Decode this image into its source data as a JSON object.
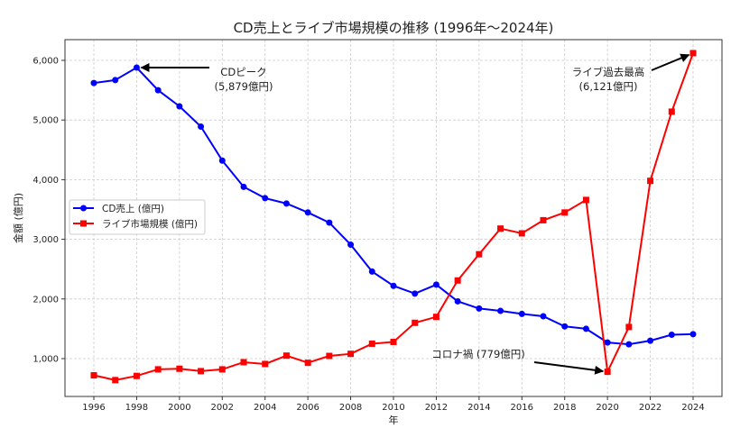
{
  "chart_data": {
    "type": "line",
    "title": "CD売上とライブ市場規模の推移 (1996年〜2024年)",
    "xlabel": "年",
    "ylabel": "金額 (億円)",
    "x": [
      1996,
      1997,
      1998,
      1999,
      2000,
      2001,
      2002,
      2003,
      2004,
      2005,
      2006,
      2007,
      2008,
      2009,
      2010,
      2011,
      2012,
      2013,
      2014,
      2015,
      2016,
      2017,
      2018,
      2019,
      2020,
      2021,
      2022,
      2023,
      2024
    ],
    "xticks": [
      1996,
      1998,
      2000,
      2002,
      2004,
      2006,
      2008,
      2010,
      2012,
      2014,
      2016,
      2018,
      2020,
      2022,
      2024
    ],
    "yticks": [
      1000,
      2000,
      3000,
      4000,
      5000,
      6000
    ],
    "ytick_labels": [
      "1,000",
      "2,000",
      "3,000",
      "4,000",
      "5,000",
      "6,000"
    ],
    "xlim": [
      1994.6,
      2025.4
    ],
    "ylim": [
      450,
      6400
    ],
    "grid": true,
    "legend_position": "center-left",
    "series": [
      {
        "name": "CD売上 (億円)",
        "color": "#0000ff",
        "marker": "circle",
        "values": [
          5620,
          5670,
          5879,
          5500,
          5230,
          4890,
          4320,
          3880,
          3690,
          3600,
          3450,
          3280,
          2910,
          2460,
          2220,
          2090,
          2240,
          1960,
          1840,
          1800,
          1750,
          1710,
          1540,
          1500,
          1270,
          1240,
          1300,
          1400,
          1410
        ]
      },
      {
        "name": "ライブ市場規模 (億円)",
        "color": "#ff0000",
        "marker": "square",
        "values": [
          720,
          640,
          710,
          820,
          830,
          790,
          820,
          940,
          910,
          1050,
          930,
          1045,
          1080,
          1250,
          1280,
          1600,
          1700,
          2310,
          2750,
          3180,
          3100,
          3320,
          3450,
          3660,
          779,
          1530,
          3980,
          5140,
          6121
        ]
      }
    ],
    "annotations": [
      {
        "lines": [
          "CDピーク",
          "(5,879億円)"
        ],
        "target_x": 1998,
        "target_y": 5879
      },
      {
        "lines": [
          "ライブ過去最高",
          "(6,121億円)"
        ],
        "target_x": 2024,
        "target_y": 6121
      },
      {
        "lines": [
          "コロナ禍 (779億円)"
        ],
        "target_x": 2020,
        "target_y": 779
      }
    ]
  }
}
